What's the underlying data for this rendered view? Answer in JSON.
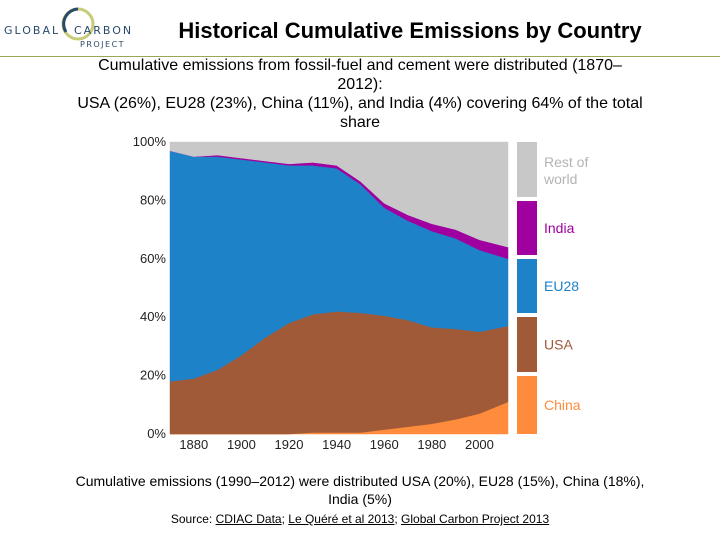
{
  "header": {
    "logo_word1": "GLOBAL",
    "logo_word2": "CARBON",
    "logo_word3": "PROJECT",
    "title": "Historical Cumulative Emissions by Country",
    "subtitle_line1": "Cumulative emissions from fossil-fuel and cement were distributed (1870–",
    "subtitle_line2": "2012):",
    "subtitle_line3": "USA (26%), EU28 (23%), China (11%), and India (4%) covering 64% of the total",
    "subtitle_line4": "share"
  },
  "footer": {
    "line1": "Cumulative emissions (1990–2012) were distributed USA (20%), EU28 (15%), China (18%),",
    "line2": "India (5%)",
    "source_prefix": "Source: ",
    "source_link1": "CDIAC Data",
    "source_sep1": "; ",
    "source_link2": "Le Quéré et al 2013",
    "source_sep2": "; ",
    "source_link3": "Global Carbon Project 2013"
  },
  "colors": {
    "china": "#ff8c3c",
    "usa": "#a05a37",
    "eu28": "#1e82c8",
    "india": "#a000a0",
    "rest": "#c8c8c8"
  },
  "chart_data": {
    "type": "area",
    "stacked": true,
    "title": "",
    "xlabel": "",
    "ylabel": "",
    "xlim": [
      1870,
      2012
    ],
    "ylim": [
      0,
      100
    ],
    "x_ticks": [
      1880,
      1900,
      1920,
      1940,
      1960,
      1980,
      2000
    ],
    "x_tick_labels": [
      "1880",
      "1900",
      "1920",
      "1940",
      "1960",
      "1980",
      "2000"
    ],
    "y_ticks": [
      0,
      20,
      40,
      60,
      80,
      100
    ],
    "y_tick_labels": [
      "0%",
      "20%",
      "40%",
      "60%",
      "80%",
      "100%"
    ],
    "x": [
      1870,
      1880,
      1890,
      1900,
      1910,
      1920,
      1930,
      1940,
      1950,
      1960,
      1970,
      1980,
      1990,
      2000,
      2012
    ],
    "series": [
      {
        "name": "China",
        "color": "#ff8c3c",
        "values": [
          0,
          0,
          0,
          0,
          0,
          0,
          0.5,
          0.5,
          0.5,
          1.5,
          2.5,
          3.5,
          5,
          7,
          11
        ]
      },
      {
        "name": "USA",
        "color": "#a05a37",
        "values": [
          18,
          19,
          22,
          27,
          33,
          38,
          40.5,
          41.5,
          41,
          39,
          36.5,
          33,
          31,
          28,
          26
        ]
      },
      {
        "name": "EU28",
        "color": "#1e82c8",
        "values": [
          79,
          76,
          73,
          67,
          60,
          54,
          51,
          49,
          44,
          37,
          34,
          33,
          31,
          28,
          23
        ]
      },
      {
        "name": "India",
        "color": "#a000a0",
        "values": [
          0,
          0,
          0.5,
          0.5,
          0.5,
          0.5,
          1,
          1,
          1,
          1.5,
          2,
          2.5,
          3,
          3.5,
          4
        ]
      },
      {
        "name": "Rest of world",
        "color": "#c8c8c8",
        "values": [
          3,
          5,
          4.5,
          5.5,
          6.5,
          7.5,
          7,
          8,
          13.5,
          21,
          25,
          28,
          30,
          33.5,
          36
        ]
      }
    ],
    "legend": [
      "Rest of world",
      "India",
      "EU28",
      "USA",
      "China"
    ],
    "legend_labels": [
      "Rest of",
      "world",
      "India",
      "EU28",
      "USA",
      "China"
    ],
    "legend_placement": "right"
  }
}
